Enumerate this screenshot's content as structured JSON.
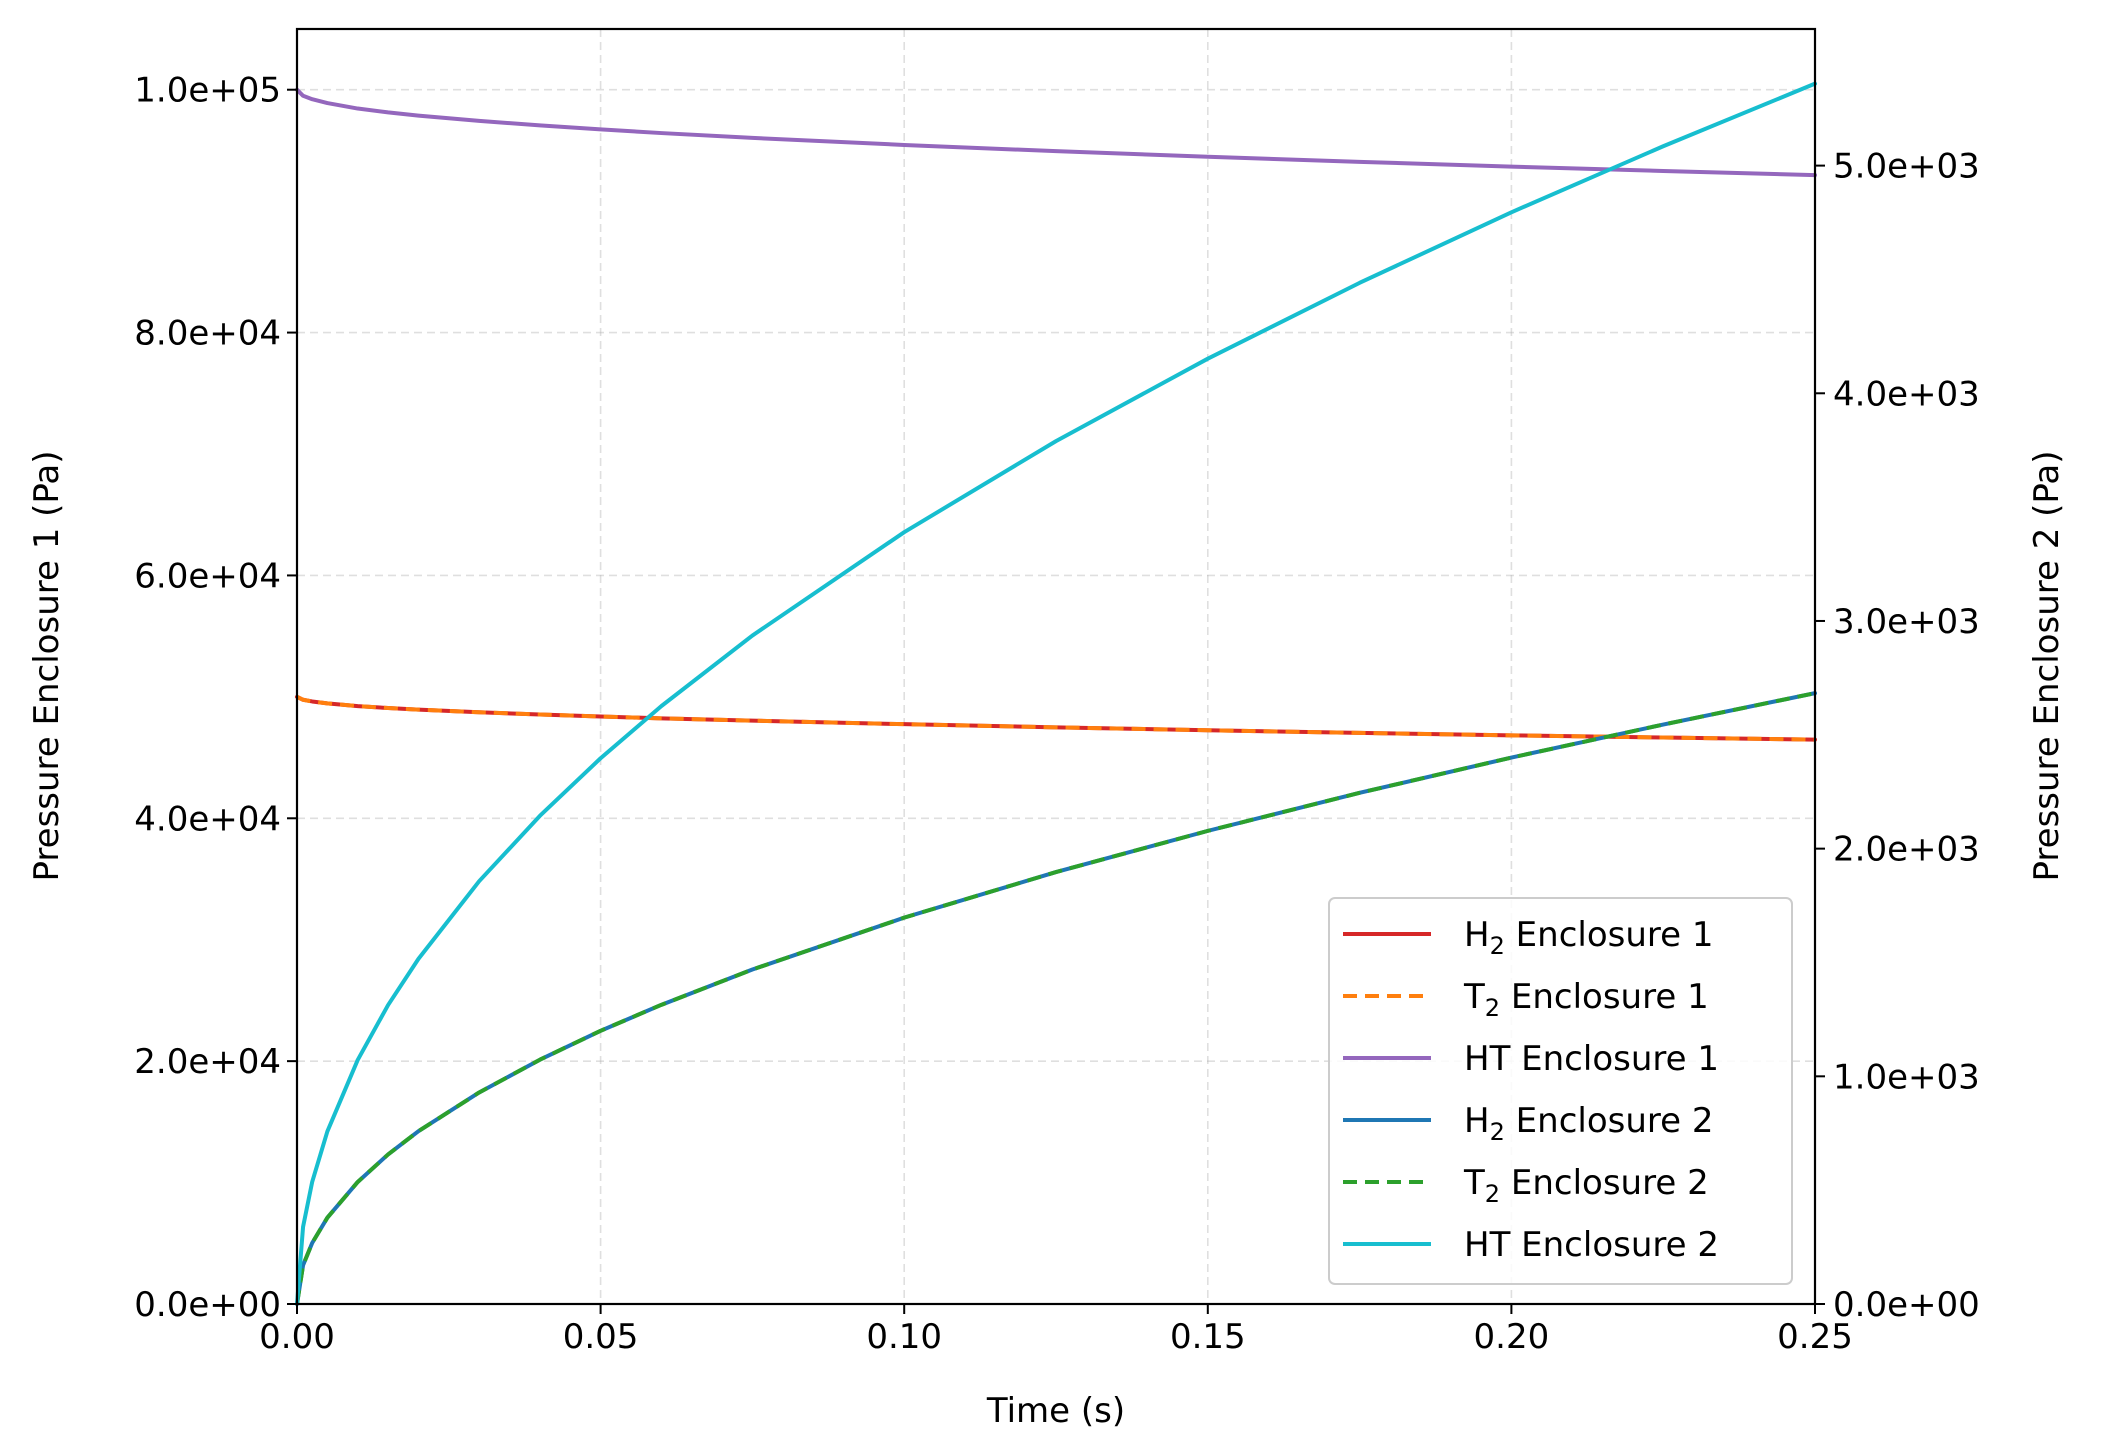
{
  "chart_data": {
    "type": "line",
    "xlabel": "Time (s)",
    "ylabel_left": "Pressure Enclosure 1 (Pa)",
    "ylabel_right": "Pressure Enclosure 2 (Pa)",
    "xlim": [
      0,
      0.25
    ],
    "ylim_left": [
      0,
      105000
    ],
    "ylim_right": [
      0,
      5600
    ],
    "x_ticks": [
      0,
      0.05,
      0.1,
      0.15,
      0.2,
      0.25
    ],
    "x_tick_labels": [
      "0.00",
      "0.05",
      "0.10",
      "0.15",
      "0.20",
      "0.25"
    ],
    "y_left_ticks": [
      0,
      20000,
      40000,
      60000,
      80000,
      100000
    ],
    "y_left_tick_labels": [
      "0.0e+00",
      "2.0e+04",
      "4.0e+04",
      "6.0e+04",
      "8.0e+04",
      "1.0e+05"
    ],
    "y_right_ticks": [
      0,
      1000,
      2000,
      3000,
      4000,
      5000
    ],
    "y_right_tick_labels": [
      "0.0e+00",
      "1.0e+03",
      "2.0e+03",
      "3.0e+03",
      "4.0e+03",
      "5.0e+03"
    ],
    "grid": true,
    "legend_position": "lower-right",
    "x": [
      0,
      0.001,
      0.0025,
      0.005,
      0.01,
      0.015,
      0.02,
      0.03,
      0.04,
      0.05,
      0.06,
      0.075,
      0.1,
      0.125,
      0.15,
      0.175,
      0.2,
      0.225,
      0.25
    ],
    "series": [
      {
        "label_main": "H",
        "label_sub": "2",
        "label_rest": " Enclosure 1",
        "axis": "left",
        "color": "#d62728",
        "dash": "solid",
        "values": [
          50000,
          49760,
          49620,
          49460,
          49240,
          49080,
          48950,
          48730,
          48550,
          48380,
          48230,
          48040,
          47750,
          47490,
          47250,
          47030,
          46830,
          46650,
          46480
        ]
      },
      {
        "label_main": "T",
        "label_sub": "2",
        "label_rest": " Enclosure 1",
        "axis": "left",
        "color": "#ff7f0e",
        "dash": "dashed",
        "values": [
          50000,
          49760,
          49620,
          49460,
          49240,
          49080,
          48950,
          48730,
          48550,
          48380,
          48230,
          48040,
          47750,
          47490,
          47250,
          47030,
          46830,
          46650,
          46480
        ]
      },
      {
        "label_main": "HT Enclosure 1",
        "label_sub": "",
        "label_rest": "",
        "axis": "left",
        "color": "#9467bd",
        "dash": "solid",
        "values": [
          100000,
          99500,
          99220,
          98900,
          98450,
          98130,
          97870,
          97430,
          97060,
          96730,
          96430,
          96030,
          95450,
          94940,
          94480,
          94060,
          93670,
          93310,
          92970
        ]
      },
      {
        "label_main": "H",
        "label_sub": "2",
        "label_rest": " Enclosure 2",
        "axis": "right",
        "color": "#1f77b4",
        "dash": "solid",
        "values": [
          0,
          170,
          268,
          379,
          536,
          657,
          759,
          929,
          1073,
          1200,
          1314,
          1469,
          1697,
          1897,
          2078,
          2245,
          2400,
          2545,
          2683
        ]
      },
      {
        "label_main": "T",
        "label_sub": "2",
        "label_rest": " Enclosure 2",
        "axis": "right",
        "color": "#2ca02c",
        "dash": "dashed",
        "values": [
          0,
          170,
          268,
          379,
          536,
          657,
          759,
          929,
          1073,
          1200,
          1314,
          1469,
          1697,
          1897,
          2078,
          2245,
          2400,
          2545,
          2683
        ]
      },
      {
        "label_main": "HT Enclosure 2",
        "label_sub": "",
        "label_rest": "",
        "axis": "right",
        "color": "#17becf",
        "dash": "solid",
        "values": [
          0,
          339,
          536,
          758,
          1072,
          1313,
          1516,
          1857,
          2144,
          2397,
          2626,
          2936,
          3390,
          3790,
          4152,
          4485,
          4795,
          5085,
          5360
        ]
      }
    ]
  }
}
